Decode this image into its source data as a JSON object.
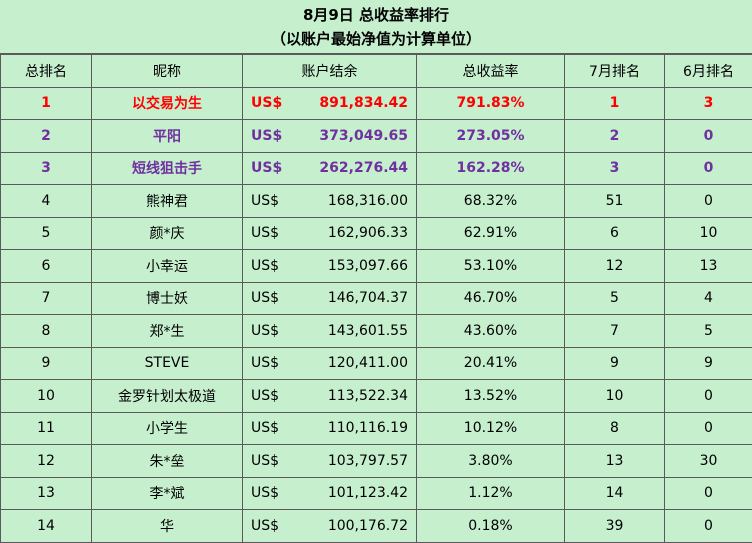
{
  "title_line1": "8月9日 总收益率排行",
  "title_line2": "（以账户最始净值为计算单位）",
  "headers": [
    "总排名",
    "昵称",
    "账户结余",
    "总收益率",
    "7月排名",
    "6月排名"
  ],
  "colors": {
    "rank1": "#ff0000",
    "rank2_3": "#7030a0",
    "background": "#c6efce"
  },
  "rows": [
    {
      "rank": "1",
      "nick": "以交易为生",
      "currency": "US$",
      "balance": "891,834.42",
      "return": "791.83%",
      "jul": "1",
      "jun": "3"
    },
    {
      "rank": "2",
      "nick": "平阳",
      "currency": "US$",
      "balance": "373,049.65",
      "return": "273.05%",
      "jul": "2",
      "jun": "0"
    },
    {
      "rank": "3",
      "nick": "短线狙击手",
      "currency": "US$",
      "balance": "262,276.44",
      "return": "162.28%",
      "jul": "3",
      "jun": "0"
    },
    {
      "rank": "4",
      "nick": "熊神君",
      "currency": "US$",
      "balance": "168,316.00",
      "return": "68.32%",
      "jul": "51",
      "jun": "0"
    },
    {
      "rank": "5",
      "nick": "颜*庆",
      "currency": "US$",
      "balance": "162,906.33",
      "return": "62.91%",
      "jul": "6",
      "jun": "10"
    },
    {
      "rank": "6",
      "nick": "小幸运",
      "currency": "US$",
      "balance": "153,097.66",
      "return": "53.10%",
      "jul": "12",
      "jun": "13"
    },
    {
      "rank": "7",
      "nick": "博士妖",
      "currency": "US$",
      "balance": "146,704.37",
      "return": "46.70%",
      "jul": "5",
      "jun": "4"
    },
    {
      "rank": "8",
      "nick": "郑*生",
      "currency": "US$",
      "balance": "143,601.55",
      "return": "43.60%",
      "jul": "7",
      "jun": "5"
    },
    {
      "rank": "9",
      "nick": "STEVE",
      "currency": "US$",
      "balance": "120,411.00",
      "return": "20.41%",
      "jul": "9",
      "jun": "9"
    },
    {
      "rank": "10",
      "nick": "金罗针划太极道",
      "currency": "US$",
      "balance": "113,522.34",
      "return": "13.52%",
      "jul": "10",
      "jun": "0"
    },
    {
      "rank": "11",
      "nick": "小学生",
      "currency": "US$",
      "balance": "110,116.19",
      "return": "10.12%",
      "jul": "8",
      "jun": "0"
    },
    {
      "rank": "12",
      "nick": "朱*垒",
      "currency": "US$",
      "balance": "103,797.57",
      "return": "3.80%",
      "jul": "13",
      "jun": "30"
    },
    {
      "rank": "13",
      "nick": "李*斌",
      "currency": "US$",
      "balance": "101,123.42",
      "return": "1.12%",
      "jul": "14",
      "jun": "0"
    },
    {
      "rank": "14",
      "nick": "华",
      "currency": "US$",
      "balance": "100,176.72",
      "return": "0.18%",
      "jul": "39",
      "jun": "0"
    }
  ]
}
